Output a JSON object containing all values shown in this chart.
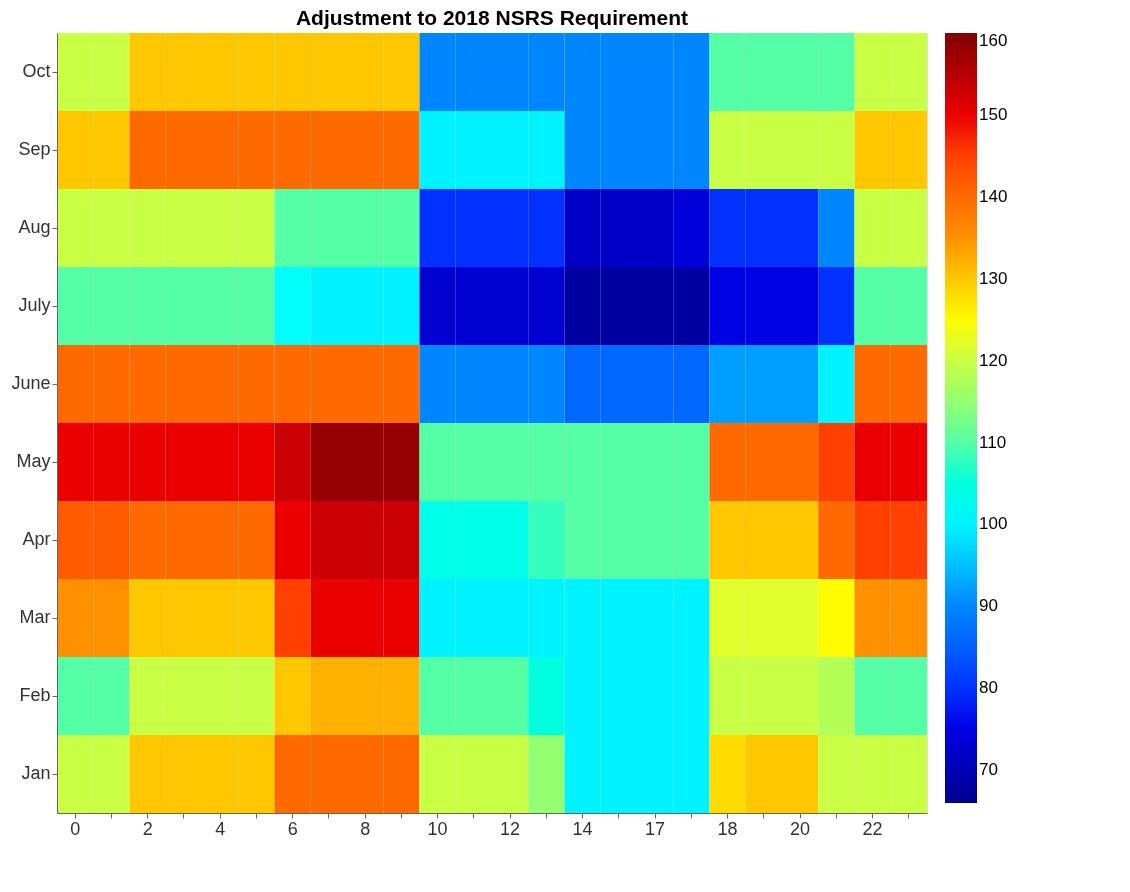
{
  "chart_data": {
    "type": "heatmap",
    "title": "Adjustment to 2018 NSRS Requirement",
    "categories": [
      "0",
      null,
      "2",
      null,
      "4",
      null,
      "6",
      null,
      "8",
      null,
      "10",
      null,
      "12",
      null,
      "14",
      null,
      "17",
      null,
      "18",
      null,
      "20",
      null,
      "22",
      null
    ],
    "y_categories": [
      "Oct",
      "Sep",
      "Aug",
      "July",
      "June",
      "May",
      "Apr",
      "Mar",
      "Feb",
      "Jan"
    ],
    "cells": [
      [
        120,
        120,
        130,
        130,
        130,
        130,
        130,
        130,
        130,
        130,
        90,
        90,
        90,
        90,
        90,
        90,
        90,
        90,
        110,
        110,
        110,
        110,
        120,
        120
      ],
      [
        130,
        130,
        140,
        140,
        140,
        140,
        140,
        140,
        140,
        140,
        100,
        100,
        100,
        100,
        90,
        90,
        90,
        90,
        120,
        120,
        120,
        120,
        130,
        130
      ],
      [
        120,
        120,
        120,
        120,
        120,
        120,
        110,
        110,
        110,
        110,
        80,
        80,
        80,
        80,
        72,
        72,
        72,
        74,
        80,
        80,
        80,
        90,
        120,
        120
      ],
      [
        110,
        110,
        110,
        110,
        110,
        110,
        102,
        100,
        100,
        100,
        73,
        73,
        73,
        73,
        68,
        68,
        68,
        68,
        75,
        75,
        75,
        80,
        110,
        110
      ],
      [
        140,
        140,
        140,
        140,
        140,
        140,
        140,
        140,
        140,
        140,
        90,
        90,
        90,
        90,
        86,
        86,
        86,
        86,
        92,
        92,
        92,
        100,
        140,
        140
      ],
      [
        150,
        150,
        150,
        150,
        150,
        150,
        153,
        158,
        158,
        158,
        110,
        110,
        110,
        110,
        110,
        110,
        110,
        110,
        140,
        140,
        140,
        145,
        150,
        150
      ],
      [
        142,
        142,
        140,
        140,
        140,
        140,
        150,
        153,
        153,
        153,
        104,
        104,
        104,
        108,
        110,
        110,
        110,
        110,
        130,
        130,
        130,
        140,
        145,
        145
      ],
      [
        135,
        135,
        130,
        130,
        130,
        130,
        145,
        150,
        150,
        150,
        100,
        100,
        100,
        100,
        100,
        100,
        100,
        100,
        122,
        122,
        122,
        125,
        135,
        135
      ],
      [
        110,
        110,
        120,
        120,
        120,
        120,
        130,
        132,
        132,
        132,
        110,
        110,
        110,
        105,
        100,
        100,
        100,
        100,
        120,
        120,
        120,
        118,
        110,
        110
      ],
      [
        120,
        120,
        130,
        130,
        130,
        130,
        140,
        140,
        140,
        140,
        120,
        120,
        120,
        115,
        100,
        100,
        100,
        100,
        128,
        130,
        130,
        120,
        120,
        120
      ]
    ],
    "clim": [
      66,
      160
    ],
    "cticks": [
      70,
      80,
      90,
      100,
      110,
      120,
      130,
      140,
      150,
      160
    ]
  }
}
